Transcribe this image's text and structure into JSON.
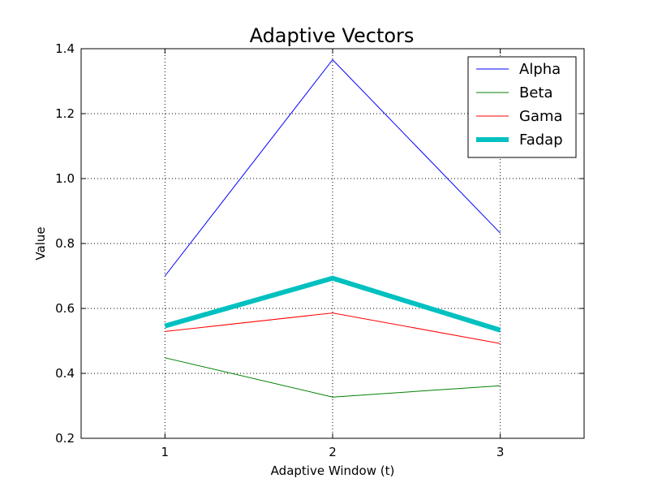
{
  "chart_data": {
    "type": "line",
    "title": "Adaptive Vectors",
    "xlabel": "Adaptive Window (t)",
    "ylabel": "Value",
    "x": [
      1,
      2,
      3
    ],
    "xlim": [
      0.5,
      3.5
    ],
    "ylim": [
      0.2,
      1.4
    ],
    "xticks": [
      "1",
      "2",
      "3"
    ],
    "yticks": [
      "0.2",
      "0.4",
      "0.6",
      "0.8",
      "1.0",
      "1.2",
      "1.4"
    ],
    "grid": true,
    "legend_position": "top-right",
    "series": [
      {
        "name": "Alpha",
        "values": [
          0.7,
          1.366,
          0.832
        ],
        "color": "#0000ff",
        "width": 1
      },
      {
        "name": "Beta",
        "values": [
          0.448,
          0.327,
          0.362
        ],
        "color": "#008000",
        "width": 1
      },
      {
        "name": "Gama",
        "values": [
          0.529,
          0.586,
          0.492
        ],
        "color": "#ff0000",
        "width": 1
      },
      {
        "name": "Fadap",
        "values": [
          0.546,
          0.693,
          0.533
        ],
        "color": "#00c0c0",
        "width": 6
      }
    ]
  }
}
